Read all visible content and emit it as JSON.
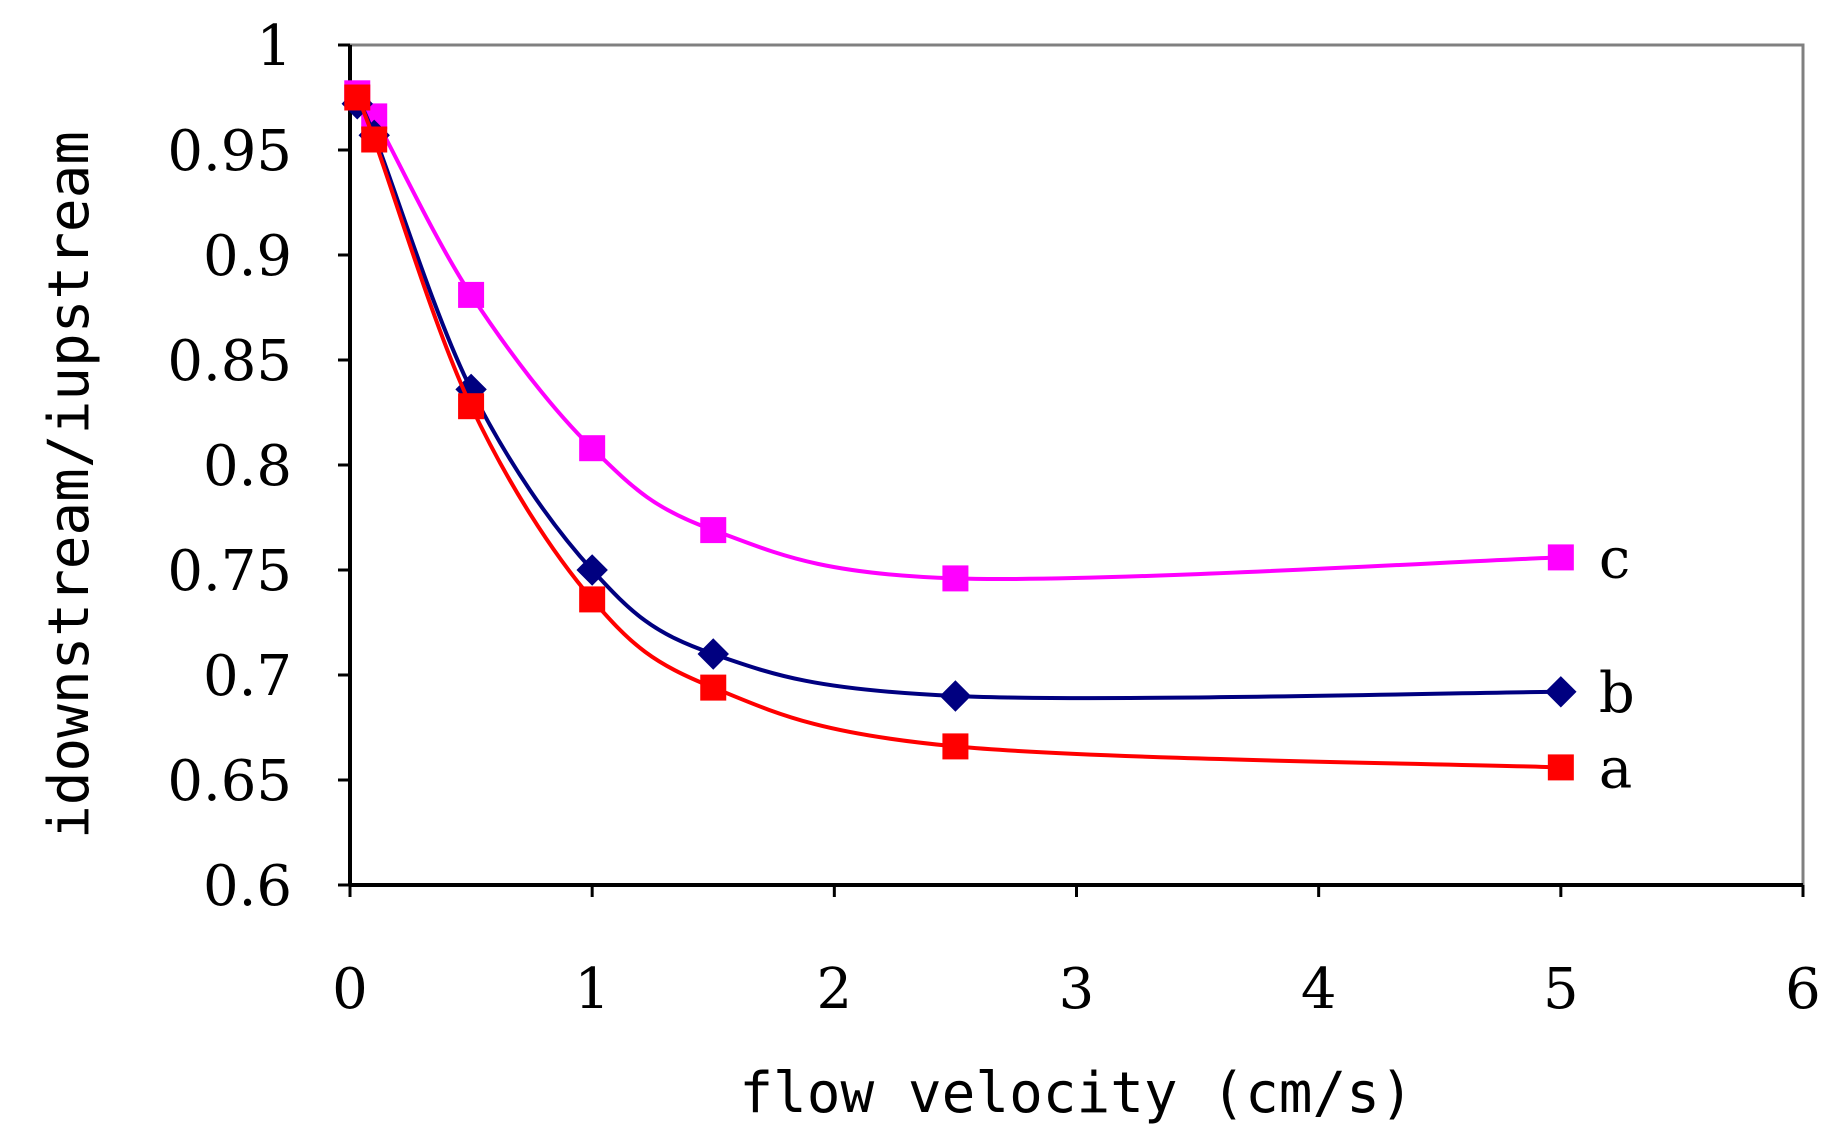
{
  "chart_data": {
    "type": "line",
    "title": "",
    "xlabel": "flow velocity (cm/s)",
    "ylabel": "idownstream/iupstream",
    "xlim": [
      0,
      6
    ],
    "ylim": [
      0.6,
      1
    ],
    "xticks": [
      0,
      1,
      2,
      3,
      4,
      5,
      6
    ],
    "xtick_labels": [
      "0",
      "1",
      "2",
      "3",
      "4",
      "5",
      "6"
    ],
    "yticks": [
      0.6,
      0.65,
      0.7,
      0.75,
      0.8,
      0.85,
      0.9,
      0.95,
      1
    ],
    "ytick_labels": [
      "0.6",
      "0.65",
      "0.7",
      "0.75",
      "0.8",
      "0.85",
      "0.9",
      "0.95",
      "1"
    ],
    "grid": false,
    "series": [
      {
        "name": "a",
        "label": "a",
        "color": "#FF0000",
        "marker": "square",
        "x": [
          0.03,
          0.1,
          0.5,
          1.0,
          1.5,
          2.5,
          5.0
        ],
        "values": [
          0.975,
          0.955,
          0.828,
          0.736,
          0.694,
          0.666,
          0.656
        ]
      },
      {
        "name": "b",
        "label": "b",
        "color": "#000080",
        "marker": "diamond",
        "x": [
          0.03,
          0.1,
          0.5,
          1.0,
          1.5,
          2.5,
          5.0
        ],
        "values": [
          0.972,
          0.957,
          0.836,
          0.75,
          0.71,
          0.69,
          0.692
        ]
      },
      {
        "name": "c",
        "label": "c",
        "color": "#FF00FF",
        "marker": "square",
        "x": [
          0.03,
          0.1,
          0.5,
          1.0,
          1.5,
          2.5,
          5.0
        ],
        "values": [
          0.977,
          0.966,
          0.881,
          0.808,
          0.769,
          0.746,
          0.756
        ]
      }
    ]
  }
}
